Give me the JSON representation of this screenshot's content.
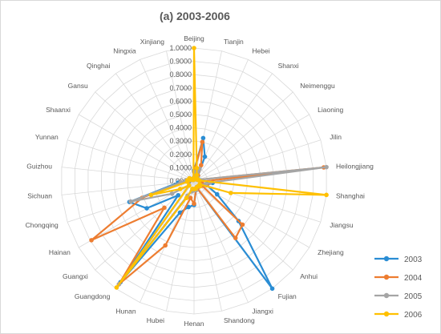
{
  "chart_data": {
    "type": "radar",
    "title": "(a) 2003-2006",
    "categories": [
      "Beijing",
      "Tianjin",
      "Hebei",
      "Shanxi",
      "Neimenggu",
      "Liaoning",
      "Jilin",
      "Heilongjiang",
      "Shanghai",
      "Jiangsu",
      "Zhejiang",
      "Anhui",
      "Fujian",
      "Jiangxi",
      "Shandong",
      "Henan",
      "Hubei",
      "Hunan",
      "Guangdong",
      "Guangxi",
      "Hainan",
      "Chongqing",
      "Sichuan",
      "Guizhou",
      "Yunnan",
      "Shaanxi",
      "Gansu",
      "Qinghai",
      "Ningxia",
      "Xinjiang"
    ],
    "tick_labels": [
      "0.0000",
      "0.1000",
      "0.2000",
      "0.3000",
      "0.4000",
      "0.5000",
      "0.6000",
      "0.7000",
      "0.8000",
      "0.9000",
      "1.0000"
    ],
    "ylim": [
      0,
      1
    ],
    "grid": true,
    "legend": "right",
    "series": [
      {
        "name": "2003",
        "color": "#2a8dd4",
        "values": [
          0.08,
          0.33,
          0.2,
          0.05,
          0.02,
          0.03,
          0.03,
          0.05,
          0.14,
          0.1,
          0.2,
          0.45,
          1.0,
          0.06,
          0.07,
          0.18,
          0.2,
          0.26,
          0.94,
          0.16,
          0.41,
          0.51,
          0.12,
          0.04,
          0.03,
          0.04,
          0.02,
          0.01,
          0.01,
          0.02
        ]
      },
      {
        "name": "2004",
        "color": "#ed7d31",
        "values": [
          0.07,
          0.3,
          0.13,
          0.05,
          0.02,
          0.03,
          0.03,
          0.98,
          0.05,
          0.1,
          0.07,
          0.49,
          0.53,
          0.06,
          0.07,
          0.17,
          0.13,
          0.53,
          0.96,
          0.3,
          0.89,
          0.41,
          0.1,
          0.04,
          0.03,
          0.04,
          0.02,
          0.01,
          0.01,
          0.02
        ]
      },
      {
        "name": "2005",
        "color": "#a5a5a5",
        "values": [
          0.07,
          0.05,
          0.1,
          0.04,
          0.02,
          0.03,
          0.03,
          1.0,
          0.12,
          0.09,
          0.05,
          0.05,
          0.05,
          0.05,
          0.07,
          0.07,
          0.08,
          0.12,
          0.96,
          0.05,
          0.19,
          0.5,
          0.1,
          0.06,
          0.03,
          0.04,
          0.02,
          0.01,
          0.01,
          0.02
        ]
      },
      {
        "name": "2006",
        "color": "#ffc000",
        "values": [
          1.0,
          0.1,
          0.05,
          0.03,
          0.02,
          0.03,
          0.03,
          0.04,
          1.0,
          0.29,
          0.05,
          0.06,
          0.05,
          0.05,
          0.06,
          0.06,
          0.06,
          0.14,
          0.99,
          0.05,
          0.12,
          0.34,
          0.05,
          0.05,
          0.03,
          0.04,
          0.02,
          0.01,
          0.01,
          0.02
        ]
      }
    ]
  }
}
